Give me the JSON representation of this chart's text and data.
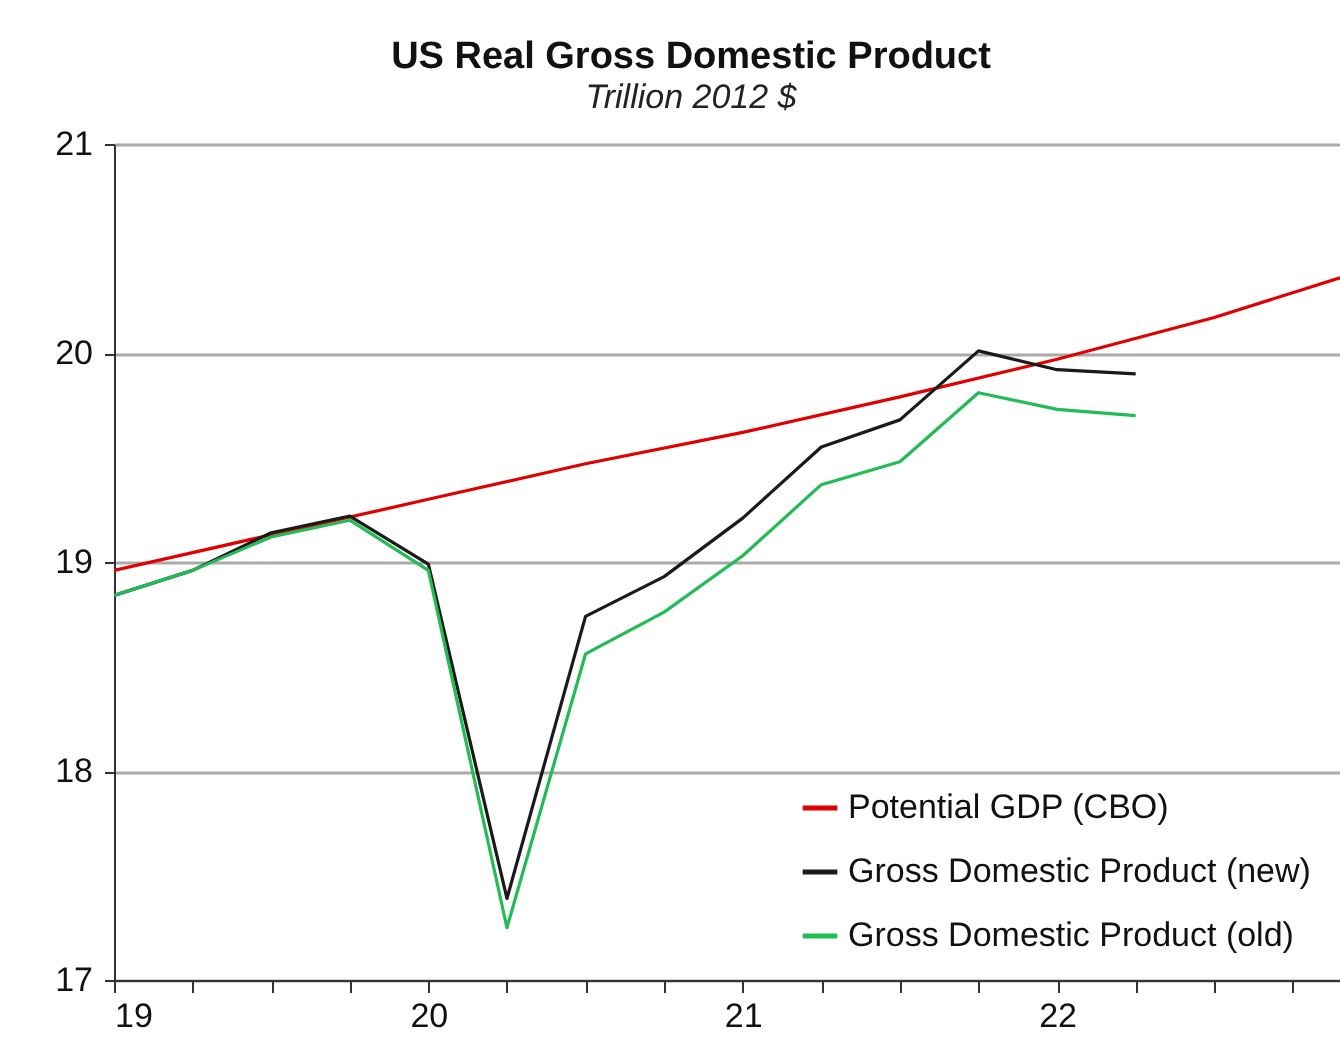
{
  "chart_data": {
    "type": "line",
    "title": "US Real Gross Domestic Product",
    "subtitle": "Trillion 2012 $",
    "xlim": [
      19,
      22.9
    ],
    "xticks": [
      19,
      {
        "value": 19.25,
        "label": null
      },
      {
        "value": 19.5,
        "label": null
      },
      {
        "value": 19.75,
        "label": null
      },
      20,
      {
        "value": 20.25,
        "label": null
      },
      {
        "value": 20.5,
        "label": null
      },
      {
        "value": 20.75,
        "label": null
      },
      21,
      {
        "value": 21.25,
        "label": null
      },
      {
        "value": 21.5,
        "label": null
      },
      {
        "value": 21.75,
        "label": null
      },
      22,
      {
        "value": 22.25,
        "label": null
      },
      {
        "value": 22.5,
        "label": null
      },
      {
        "value": 22.75,
        "label": null
      }
    ],
    "ylim": [
      17,
      21
    ],
    "yticks": [
      17,
      18,
      19,
      20,
      21
    ],
    "grid": "y",
    "legend": "bottom right",
    "marker": "none",
    "line_style": "solid",
    "series": [
      {
        "name": "Potential GDP (CBO)",
        "color": "#e00000",
        "x": [
          19,
          20,
          20.5,
          21,
          21.5,
          22,
          22.5,
          22.9
        ],
        "values": [
          18.96,
          19.3,
          19.47,
          19.62,
          19.79,
          19.97,
          20.17,
          20.36
        ]
      },
      {
        "name": "Gross Domestic Product (new)",
        "color": "#1a1a1a",
        "x": [
          19,
          19.25,
          19.5,
          19.75,
          20,
          20.25,
          20.5,
          20.75,
          21,
          21.25,
          21.5,
          21.75,
          22,
          22.25
        ],
        "values": [
          18.84,
          18.96,
          19.14,
          19.22,
          18.99,
          17.39,
          18.74,
          18.93,
          19.21,
          19.55,
          19.68,
          20.01,
          19.92,
          19.9
        ]
      },
      {
        "name": "Gross Domestic Product (old)",
        "color": "#22bb55",
        "x": [
          19,
          19.25,
          19.5,
          19.75,
          20,
          20.25,
          20.5,
          20.75,
          21,
          21.25,
          21.5,
          21.75,
          22,
          22.25
        ],
        "values": [
          18.84,
          18.96,
          19.12,
          19.2,
          18.96,
          17.25,
          18.56,
          18.76,
          19.03,
          19.37,
          19.48,
          19.81,
          19.73,
          19.7
        ]
      }
    ]
  }
}
